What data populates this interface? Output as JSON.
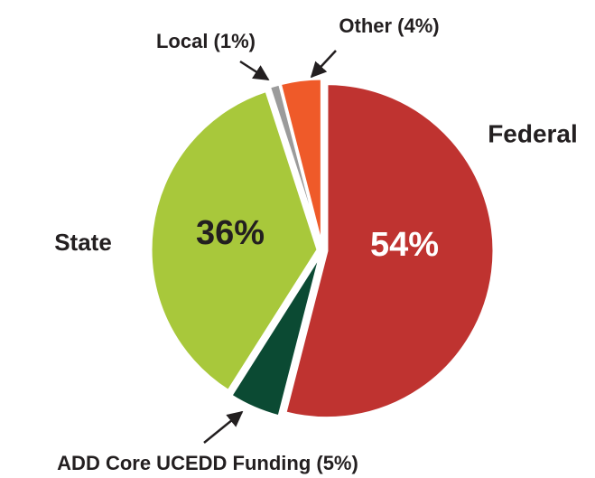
{
  "chart_data": {
    "type": "pie",
    "categories": [
      "Federal",
      "ADD Core UCEDD Funding (5%)",
      "State",
      "Local (1%)",
      "Other (4%)"
    ],
    "values": [
      54,
      5,
      36,
      1,
      4
    ],
    "value_labels": [
      "54%",
      null,
      "36%",
      null,
      null
    ],
    "colors": [
      "#bf3330",
      "#0b4a33",
      "#a8c83b",
      "#9b9b9b",
      "#ef5a29"
    ]
  }
}
